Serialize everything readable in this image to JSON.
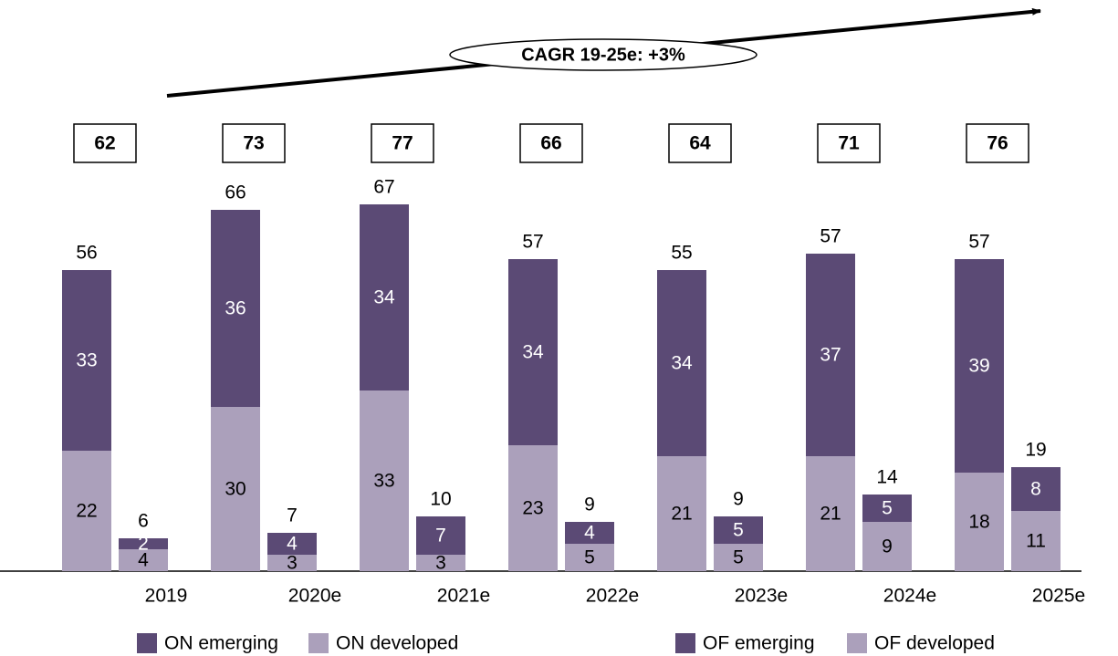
{
  "chart_data": {
    "type": "bar",
    "annotation": "CAGR 19-25e: +3%",
    "categories": [
      "2019",
      "2020e",
      "2021e",
      "2022e",
      "2023e",
      "2024e",
      "2025e"
    ],
    "series": [
      {
        "name": "ON emerging",
        "color": "#5b4a75",
        "values": [
          33,
          36,
          34,
          34,
          34,
          37,
          39
        ]
      },
      {
        "name": "ON developed",
        "color": "#aba0bb",
        "values": [
          22,
          30,
          33,
          23,
          21,
          21,
          18
        ]
      },
      {
        "name": "OF emerging",
        "color": "#5b4a75",
        "values": [
          2,
          4,
          7,
          4,
          5,
          5,
          8
        ]
      },
      {
        "name": "OF developed",
        "color": "#aba0bb",
        "values": [
          4,
          3,
          3,
          5,
          5,
          9,
          11
        ]
      }
    ],
    "on_totals": [
      56,
      66,
      67,
      57,
      55,
      57,
      57
    ],
    "of_totals": [
      6,
      7,
      10,
      9,
      9,
      14,
      19
    ],
    "group_totals": [
      62,
      73,
      77,
      66,
      64,
      71,
      76
    ],
    "ylim": [
      0,
      70
    ]
  }
}
